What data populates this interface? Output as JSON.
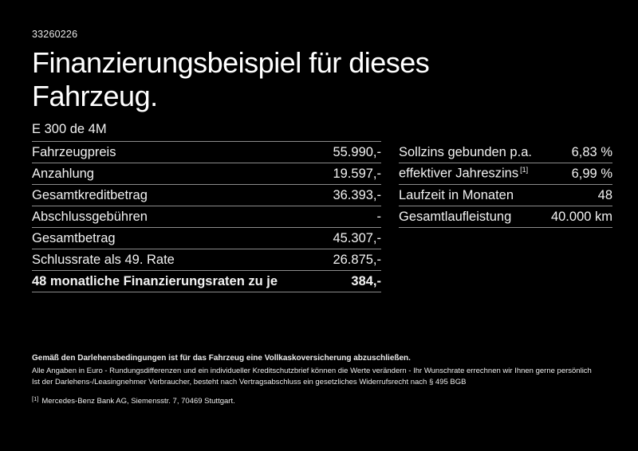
{
  "page": {
    "id_number": "33260226",
    "title_line1": "Finanzierungsbeispiel für dieses",
    "title_line2": "Fahrzeug.",
    "model": "E 300 de 4M"
  },
  "left_table": {
    "rows": [
      {
        "label": "Fahrzeugpreis",
        "value": "55.990,-",
        "bold": false
      },
      {
        "label": "Anzahlung",
        "value": "19.597,-",
        "bold": false
      },
      {
        "label": "Gesamtkreditbetrag",
        "value": "36.393,-",
        "bold": false
      },
      {
        "label": "Abschlussgebühren",
        "value": "-",
        "bold": false
      },
      {
        "label": "Gesamtbetrag",
        "value": "45.307,-",
        "bold": false
      },
      {
        "label": "Schlussrate als 49. Rate",
        "value": "26.875,-",
        "bold": false
      },
      {
        "label": "48 monatliche Finanzierungsraten zu je",
        "value": "384,-",
        "bold": true
      }
    ]
  },
  "right_table": {
    "rows": [
      {
        "label": "Sollzins gebunden p.a.",
        "value": "6,83 %",
        "bold": false
      },
      {
        "label": "effektiver Jahreszins",
        "label_sup": "[1]",
        "value": "6,99 %",
        "bold": false
      },
      {
        "label": "Laufzeit in Monaten",
        "value": "48",
        "bold": false
      },
      {
        "label": "Gesamtlaufleistung",
        "value": "40.000 km",
        "bold": false
      }
    ]
  },
  "notes": {
    "bold_line": "Gemäß den Darlehensbedingungen ist für das Fahrzeug eine Vollkaskoversicherung abzuschließen.",
    "line2": "Alle Angaben in Euro - Rundungsdifferenzen und ein individueller Kreditschutzbrief können die Werte verändern - Ihr Wunschrate errechnen wir Ihnen gerne persönlich",
    "line3": "Ist der Darlehens-/Leasingnehmer Verbraucher, besteht nach Vertragsabschluss ein gesetzliches Widerrufsrecht nach § 495 BGB",
    "footnote_marker": "[1]",
    "footnote_text": "Mercedes-Benz Bank AG, Siemensstr. 7, 70469 Stuttgart."
  },
  "colors": {
    "background": "#000000",
    "text": "#f2f2f2",
    "divider": "#8c8c8c"
  }
}
